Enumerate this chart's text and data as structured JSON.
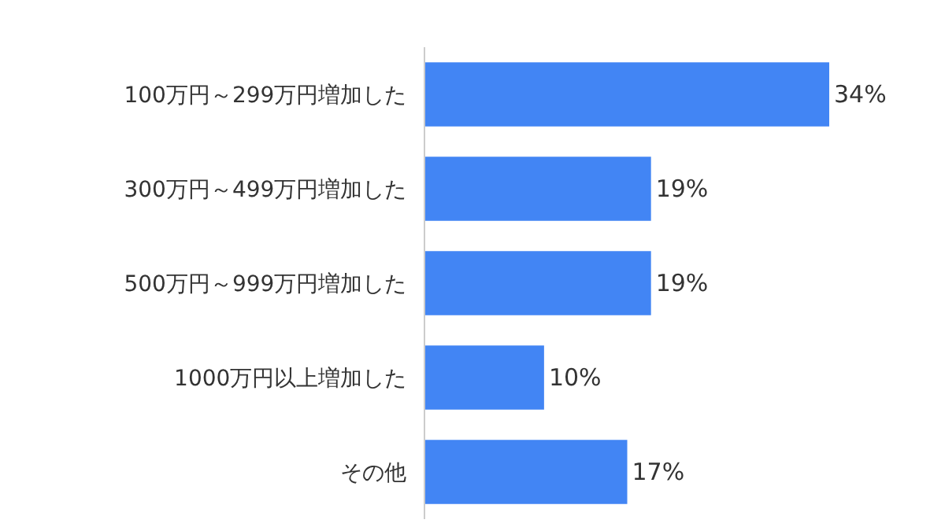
{
  "chart_data": {
    "type": "bar",
    "orientation": "horizontal",
    "categories": [
      "100万円～299万円増加した",
      "300万円～499万円増加した",
      "500万円～999万円増加した",
      "1000万円以上増加した",
      "その他"
    ],
    "values": [
      34,
      19,
      19,
      10,
      17
    ],
    "value_labels": [
      "34%",
      "19%",
      "19%",
      "10%",
      "17%"
    ],
    "color": "#4285f4",
    "tick_labels": "y"
  }
}
